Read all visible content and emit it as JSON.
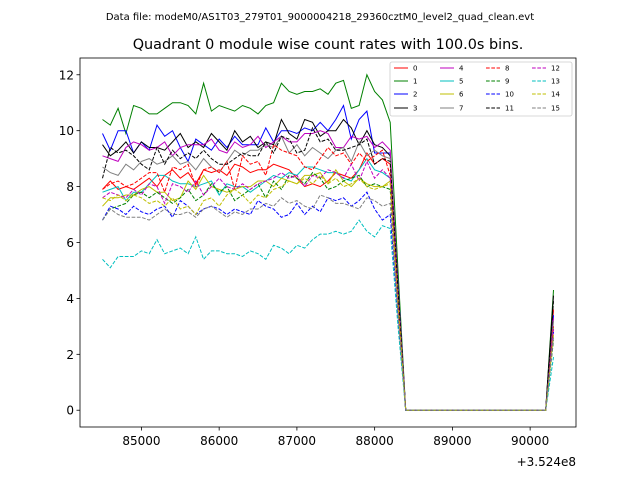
{
  "chart_data": {
    "type": "line",
    "suptitle": "Data file: modeM0/AS1T03_279T01_9000004218_29360cztM0_level2_quad_clean.evt",
    "title": "Quadrant 0 module wise count rates with 100.0s bins.",
    "xlabel": "",
    "ylabel": "",
    "x_offset_text": "+3.524e8",
    "x_start": 84500,
    "x_step": 100,
    "xlim": [
      84210,
      90590
    ],
    "ylim": [
      -0.6,
      12.6
    ],
    "xticks": [
      85000,
      86000,
      87000,
      88000,
      89000,
      90000
    ],
    "xtick_labels": [
      "85000",
      "86000",
      "87000",
      "88000",
      "89000",
      "90000"
    ],
    "yticks": [
      0,
      2,
      4,
      6,
      8,
      10,
      12
    ],
    "ytick_labels": [
      "0",
      "2",
      "4",
      "6",
      "8",
      "10",
      "12"
    ],
    "grid": false,
    "legend_position": "top-right",
    "series": [
      {
        "name": "0",
        "color": "#ff0000",
        "dash": false,
        "values": [
          7.9,
          8.2,
          7.9,
          8.0,
          7.9,
          8.1,
          8.3,
          8.0,
          8.4,
          8.6,
          8.3,
          8.5,
          8.1,
          8.6,
          8.5,
          8.6,
          8.4,
          8.8,
          8.7,
          8.5,
          8.6,
          8.6,
          8.8,
          8.7,
          8.6,
          8.3,
          8.0,
          8.1,
          8.0,
          8.2,
          8.5,
          8.4,
          8.3,
          8.6,
          9.2,
          8.8,
          9.0,
          8.8,
          4.2,
          0,
          0,
          0,
          0,
          0,
          0,
          0,
          0,
          0,
          0,
          0,
          0,
          0,
          0,
          0,
          0,
          0,
          0,
          0,
          3.6
        ]
      },
      {
        "name": "1",
        "color": "#008000",
        "dash": false,
        "values": [
          10.4,
          10.2,
          10.8,
          9.9,
          10.9,
          10.8,
          10.6,
          10.6,
          10.8,
          11.0,
          11.0,
          10.9,
          10.6,
          11.7,
          10.7,
          10.9,
          10.8,
          10.7,
          10.9,
          10.8,
          10.6,
          10.9,
          11.0,
          11.7,
          11.4,
          11.3,
          11.4,
          11.4,
          11.5,
          11.3,
          11.7,
          11.8,
          10.8,
          10.9,
          12.0,
          11.4,
          11.1,
          10.3,
          5.0,
          0,
          0,
          0,
          0,
          0,
          0,
          0,
          0,
          0,
          0,
          0,
          0,
          0,
          0,
          0,
          0,
          0,
          0,
          0,
          4.3
        ]
      },
      {
        "name": "2",
        "color": "#0000ff",
        "dash": false,
        "values": [
          9.9,
          9.3,
          10.0,
          10.0,
          9.2,
          9.6,
          9.3,
          10.2,
          9.8,
          10.0,
          9.4,
          8.9,
          9.7,
          9.5,
          9.3,
          9.7,
          9.4,
          9.8,
          9.5,
          9.5,
          9.5,
          10.1,
          9.6,
          10.0,
          10.0,
          9.9,
          10.1,
          10.0,
          10.3,
          10.0,
          10.4,
          10.9,
          9.7,
          10.4,
          10.7,
          9.2,
          9.2,
          9.2,
          4.5,
          0,
          0,
          0,
          0,
          0,
          0,
          0,
          0,
          0,
          0,
          0,
          0,
          0,
          0,
          0,
          0,
          0,
          0,
          0,
          3.4
        ]
      },
      {
        "name": "3",
        "color": "#000000",
        "dash": false,
        "values": [
          9.5,
          9.1,
          9.3,
          9.6,
          9.2,
          9.6,
          9.4,
          9.4,
          9.3,
          9.6,
          9.9,
          9.4,
          9.6,
          9.4,
          9.9,
          9.6,
          9.3,
          10.0,
          9.6,
          9.8,
          9.4,
          9.6,
          9.5,
          10.4,
          9.9,
          9.7,
          10.4,
          10.3,
          9.8,
          10.0,
          10.0,
          10.4,
          10.1,
          9.5,
          10.0,
          9.5,
          9.4,
          9.1,
          4.3,
          0,
          0,
          0,
          0,
          0,
          0,
          0,
          0,
          0,
          0,
          0,
          0,
          0,
          0,
          0,
          0,
          0,
          0,
          0,
          4.1
        ]
      },
      {
        "name": "4",
        "color": "#bf00bf",
        "dash": false,
        "values": [
          9.1,
          9.0,
          8.9,
          9.4,
          9.6,
          9.5,
          9.3,
          9.4,
          9.6,
          9.1,
          9.4,
          9.5,
          9.5,
          9.5,
          9.7,
          9.3,
          9.2,
          9.6,
          9.4,
          9.5,
          9.8,
          9.4,
          9.6,
          9.8,
          9.6,
          9.6,
          9.9,
          9.9,
          10.0,
          9.9,
          9.4,
          9.4,
          9.8,
          9.7,
          9.8,
          9.4,
          9.6,
          9.3,
          4.4,
          0,
          0,
          0,
          0,
          0,
          0,
          0,
          0,
          0,
          0,
          0,
          0,
          0,
          0,
          0,
          0,
          0,
          0,
          0,
          3.3
        ]
      },
      {
        "name": "5",
        "color": "#00bfbf",
        "dash": false,
        "values": [
          7.8,
          7.9,
          8.0,
          7.5,
          7.8,
          7.8,
          8.1,
          8.4,
          8.4,
          8.2,
          8.1,
          8.1,
          8.0,
          8.1,
          8.2,
          7.7,
          8.1,
          8.0,
          8.0,
          7.8,
          8.0,
          8.2,
          8.4,
          8.3,
          8.5,
          8.4,
          8.7,
          8.7,
          8.6,
          8.5,
          8.5,
          8.3,
          8.2,
          8.6,
          9.0,
          8.6,
          8.5,
          8.3,
          4.0,
          0,
          0,
          0,
          0,
          0,
          0,
          0,
          0,
          0,
          0,
          0,
          0,
          0,
          0,
          0,
          0,
          0,
          0,
          0,
          3.0
        ]
      },
      {
        "name": "6",
        "color": "#bfbf00",
        "dash": false,
        "values": [
          7.3,
          7.6,
          7.6,
          7.7,
          7.7,
          7.9,
          8.0,
          7.8,
          7.8,
          7.5,
          7.6,
          8.2,
          7.9,
          8.4,
          8.0,
          7.9,
          7.8,
          7.9,
          8.0,
          8.0,
          8.2,
          8.2,
          8.0,
          8.3,
          8.2,
          8.1,
          8.4,
          8.4,
          8.5,
          8.1,
          8.6,
          8.2,
          8.0,
          8.3,
          8.1,
          8.0,
          8.0,
          8.2,
          3.9,
          0,
          0,
          0,
          0,
          0,
          0,
          0,
          0,
          0,
          0,
          0,
          0,
          0,
          0,
          0,
          0,
          0,
          0,
          0,
          3.0
        ]
      },
      {
        "name": "7",
        "color": "#808080",
        "dash": false,
        "values": [
          8.7,
          8.5,
          8.4,
          8.8,
          8.6,
          8.9,
          9.0,
          8.8,
          8.9,
          9.1,
          8.8,
          8.9,
          8.6,
          9.0,
          8.7,
          8.5,
          8.9,
          9.3,
          9.1,
          9.3,
          9.3,
          9.5,
          9.4,
          9.8,
          9.2,
          9.5,
          9.1,
          9.4,
          9.2,
          9.0,
          9.3,
          9.4,
          8.9,
          9.6,
          9.1,
          9.3,
          9.1,
          9.0,
          4.2,
          0,
          0,
          0,
          0,
          0,
          0,
          0,
          0,
          0,
          0,
          0,
          0,
          0,
          0,
          0,
          0,
          0,
          0,
          0,
          3.2
        ]
      },
      {
        "name": "8",
        "color": "#ff0000",
        "dash": true,
        "values": [
          7.9,
          8.1,
          8.2,
          8.0,
          8.1,
          8.3,
          8.5,
          8.5,
          7.8,
          8.7,
          8.6,
          8.8,
          8.0,
          8.6,
          8.7,
          8.5,
          8.9,
          7.9,
          9.1,
          8.8,
          8.9,
          8.4,
          9.5,
          9.3,
          9.2,
          9.1,
          8.7,
          8.6,
          9.0,
          9.4,
          9.1,
          9.2,
          8.8,
          9.2,
          8.9,
          9.1,
          9.3,
          8.4,
          4.0,
          0,
          0,
          0,
          0,
          0,
          0,
          0,
          0,
          0,
          0,
          0,
          0,
          0,
          0,
          0,
          0,
          0,
          0,
          0,
          3.0
        ]
      },
      {
        "name": "9",
        "color": "#008000",
        "dash": true,
        "values": [
          6.8,
          7.2,
          7.3,
          7.4,
          7.7,
          7.8,
          7.6,
          7.8,
          7.6,
          7.4,
          7.6,
          7.9,
          7.5,
          7.7,
          8.1,
          7.8,
          8.0,
          7.5,
          7.7,
          7.9,
          8.1,
          7.6,
          8.2,
          7.9,
          8.4,
          8.3,
          8.1,
          8.5,
          8.3,
          7.9,
          8.0,
          8.2,
          8.3,
          8.4,
          8.0,
          8.1,
          8.0,
          7.9,
          3.8,
          0,
          0,
          0,
          0,
          0,
          0,
          0,
          0,
          0,
          0,
          0,
          0,
          0,
          0,
          0,
          0,
          0,
          0,
          0,
          2.5
        ]
      },
      {
        "name": "10",
        "color": "#0000ff",
        "dash": true,
        "values": [
          6.8,
          7.3,
          7.2,
          7.0,
          7.3,
          7.1,
          7.0,
          7.2,
          7.3,
          6.9,
          7.5,
          7.3,
          7.0,
          7.2,
          7.3,
          7.2,
          7.0,
          7.2,
          7.1,
          7.0,
          7.5,
          7.3,
          7.2,
          6.9,
          7.0,
          7.4,
          7.0,
          7.3,
          7.1,
          7.6,
          7.5,
          7.6,
          7.3,
          7.5,
          7.8,
          7.2,
          6.8,
          7.0,
          3.4,
          0,
          0,
          0,
          0,
          0,
          0,
          0,
          0,
          0,
          0,
          0,
          0,
          0,
          0,
          0,
          0,
          0,
          0,
          0,
          2.8
        ]
      },
      {
        "name": "11",
        "color": "#000000",
        "dash": true,
        "values": [
          8.3,
          9.4,
          9.2,
          9.3,
          9.1,
          8.8,
          8.6,
          9.4,
          8.8,
          9.3,
          9.0,
          9.2,
          9.0,
          9.3,
          9.0,
          8.8,
          8.8,
          9.0,
          9.2,
          9.1,
          9.1,
          9.6,
          9.2,
          9.8,
          9.7,
          9.2,
          9.3,
          10.1,
          9.6,
          9.7,
          9.3,
          9.3,
          9.4,
          9.5,
          9.7,
          8.8,
          9.0,
          8.9,
          4.3,
          0,
          0,
          0,
          0,
          0,
          0,
          0,
          0,
          0,
          0,
          0,
          0,
          0,
          0,
          0,
          0,
          0,
          0,
          0,
          3.9
        ]
      },
      {
        "name": "12",
        "color": "#bf00bf",
        "dash": true,
        "values": [
          7.6,
          7.8,
          7.7,
          7.6,
          7.9,
          7.7,
          8.1,
          8.0,
          7.4,
          8.1,
          8.0,
          7.8,
          8.2,
          7.7,
          8.0,
          8.3,
          8.0,
          7.9,
          8.1,
          7.9,
          8.1,
          8.2,
          8.3,
          8.5,
          8.3,
          8.4,
          8.0,
          8.4,
          8.3,
          8.6,
          8.5,
          8.3,
          8.8,
          8.2,
          8.9,
          8.3,
          8.6,
          8.3,
          3.7,
          0,
          0,
          0,
          0,
          0,
          0,
          0,
          0,
          0,
          0,
          0,
          0,
          0,
          0,
          0,
          0,
          0,
          0,
          0,
          2.9
        ]
      },
      {
        "name": "13",
        "color": "#00bfbf",
        "dash": true,
        "values": [
          5.4,
          5.1,
          5.5,
          5.5,
          5.5,
          5.7,
          5.6,
          6.1,
          5.6,
          5.7,
          5.8,
          5.6,
          6.2,
          5.4,
          5.7,
          5.7,
          5.6,
          5.6,
          5.5,
          5.7,
          5.6,
          5.4,
          5.9,
          5.8,
          5.6,
          5.9,
          5.8,
          6.1,
          6.3,
          6.3,
          6.4,
          6.3,
          6.4,
          6.8,
          6.4,
          6.2,
          6.6,
          6.5,
          3.0,
          0,
          0,
          0,
          0,
          0,
          0,
          0,
          0,
          0,
          0,
          0,
          0,
          0,
          0,
          0,
          0,
          0,
          0,
          0,
          1.9
        ]
      },
      {
        "name": "14",
        "color": "#bfbf00",
        "dash": true,
        "values": [
          7.6,
          7.5,
          7.7,
          7.5,
          7.7,
          7.6,
          7.4,
          7.5,
          7.3,
          7.6,
          7.2,
          7.3,
          7.0,
          7.5,
          7.6,
          7.3,
          7.7,
          7.9,
          7.7,
          7.4,
          7.7,
          7.6,
          7.9,
          8.0,
          8.2,
          8.1,
          8.3,
          8.1,
          8.4,
          8.1,
          8.3,
          8.0,
          8.1,
          8.3,
          8.0,
          7.9,
          8.0,
          8.1,
          3.8,
          0,
          0,
          0,
          0,
          0,
          0,
          0,
          0,
          0,
          0,
          0,
          0,
          0,
          0,
          0,
          0,
          0,
          0,
          0,
          2.7
        ]
      },
      {
        "name": "15",
        "color": "#808080",
        "dash": true,
        "values": [
          6.8,
          7.2,
          7.0,
          6.9,
          6.9,
          6.9,
          6.8,
          7.0,
          7.2,
          7.0,
          7.0,
          7.1,
          6.9,
          7.2,
          7.3,
          7.1,
          6.9,
          7.1,
          7.0,
          7.2,
          7.2,
          7.4,
          7.3,
          7.6,
          7.4,
          7.5,
          7.3,
          7.2,
          7.7,
          7.6,
          7.4,
          7.4,
          7.3,
          7.2,
          7.6,
          7.5,
          7.3,
          7.4,
          3.4,
          0,
          0,
          0,
          0,
          0,
          0,
          0,
          0,
          0,
          0,
          0,
          0,
          0,
          0,
          0,
          0,
          0,
          0,
          0,
          2.6
        ]
      }
    ]
  }
}
